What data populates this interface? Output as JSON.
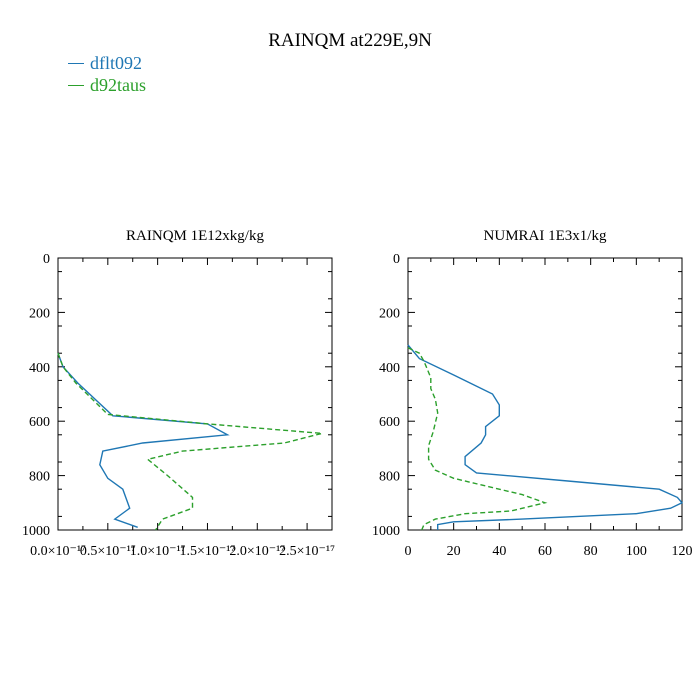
{
  "title": "RAINQM at229E,9N",
  "legend": {
    "items": [
      {
        "label": "dflt092",
        "color": "#1f77b4"
      },
      {
        "label": "d92taus",
        "color": "#2ca02c"
      }
    ]
  },
  "chart_data": [
    {
      "type": "line",
      "title": "RAINQM  1E12xkg/kg",
      "xlabel": "",
      "ylabel": "",
      "xlim": [
        0,
        2.75e-17
      ],
      "ylim": [
        1000,
        0
      ],
      "x_ticks": [
        "0.0×10⁻¹⁷",
        "0.5×10⁻¹⁷",
        "1.0×10⁻¹⁷",
        "1.5×10⁻¹⁷",
        "2.0×10⁻¹⁷",
        "2.5×10⁻¹⁷"
      ],
      "x_tick_values": [
        0,
        5e-18,
        1e-17,
        1.5e-17,
        2e-17,
        2.5e-17
      ],
      "y_ticks": [
        "0",
        "200",
        "400",
        "600",
        "800",
        "1000"
      ],
      "y_tick_values": [
        0,
        200,
        400,
        600,
        800,
        1000
      ],
      "series": [
        {
          "name": "dflt092",
          "color": "#1f77b4",
          "dash": "solid",
          "points": [
            [
              0,
              350
            ],
            [
              5e-19,
              400
            ],
            [
              2e-18,
              460
            ],
            [
              5.5e-18,
              580
            ],
            [
              1.5e-17,
              610
            ],
            [
              1.7e-17,
              650
            ],
            [
              8.5e-18,
              680
            ],
            [
              4.5e-18,
              710
            ],
            [
              4.2e-18,
              760
            ],
            [
              5e-18,
              810
            ],
            [
              6.5e-18,
              850
            ],
            [
              7.2e-18,
              920
            ],
            [
              5.7e-18,
              960
            ],
            [
              8e-18,
              990
            ]
          ]
        },
        {
          "name": "d92taus",
          "color": "#2ca02c",
          "dash": "dashed",
          "points": [
            [
              0,
              350
            ],
            [
              5e-19,
              400
            ],
            [
              1.8e-18,
              460
            ],
            [
              5e-18,
              575
            ],
            [
              1.5e-17,
              610
            ],
            [
              2.65e-17,
              645
            ],
            [
              2.27e-17,
              680
            ],
            [
              1.25e-17,
              710
            ],
            [
              9e-18,
              740
            ],
            [
              1.1e-17,
              800
            ],
            [
              1.35e-17,
              880
            ],
            [
              1.35e-17,
              920
            ],
            [
              1.05e-17,
              960
            ],
            [
              9.8e-18,
              1000
            ]
          ]
        }
      ]
    },
    {
      "type": "line",
      "title": "NUMRAI  1E3x1/kg",
      "xlabel": "",
      "ylabel": "",
      "xlim": [
        0,
        120
      ],
      "ylim": [
        1000,
        0
      ],
      "x_ticks": [
        "0",
        "20",
        "40",
        "60",
        "80",
        "100",
        "120"
      ],
      "x_tick_values": [
        0,
        20,
        40,
        60,
        80,
        100,
        120
      ],
      "y_ticks": [
        "0",
        "200",
        "400",
        "600",
        "800",
        "1000"
      ],
      "y_tick_values": [
        0,
        200,
        400,
        600,
        800,
        1000
      ],
      "series": [
        {
          "name": "dflt092",
          "color": "#1f77b4",
          "dash": "solid",
          "points": [
            [
              0,
              320
            ],
            [
              5,
              370
            ],
            [
              20,
              430
            ],
            [
              37,
              500
            ],
            [
              40,
              540
            ],
            [
              40,
              580
            ],
            [
              34,
              620
            ],
            [
              34,
              650
            ],
            [
              32,
              680
            ],
            [
              25,
              730
            ],
            [
              25,
              760
            ],
            [
              30,
              790
            ],
            [
              70,
              820
            ],
            [
              110,
              850
            ],
            [
              118,
              880
            ],
            [
              120,
              900
            ],
            [
              115,
              920
            ],
            [
              100,
              940
            ],
            [
              50,
              960
            ],
            [
              20,
              970
            ],
            [
              13,
              980
            ],
            [
              13,
              1000
            ]
          ]
        },
        {
          "name": "d92taus",
          "color": "#2ca02c",
          "dash": "dashed",
          "points": [
            [
              0,
              330
            ],
            [
              5,
              350
            ],
            [
              7,
              380
            ],
            [
              8,
              400
            ],
            [
              10,
              440
            ],
            [
              10,
              480
            ],
            [
              12,
              520
            ],
            [
              13,
              570
            ],
            [
              11,
              640
            ],
            [
              9,
              690
            ],
            [
              9,
              740
            ],
            [
              12,
              780
            ],
            [
              20,
              810
            ],
            [
              35,
              840
            ],
            [
              50,
              870
            ],
            [
              60,
              900
            ],
            [
              45,
              930
            ],
            [
              25,
              940
            ],
            [
              12,
              960
            ],
            [
              7,
              980
            ],
            [
              6,
              1000
            ]
          ]
        }
      ]
    }
  ]
}
